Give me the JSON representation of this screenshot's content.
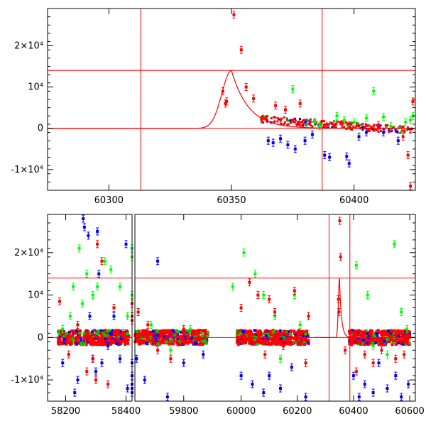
{
  "chart_data": [
    {
      "type": "scatter",
      "panel": "top",
      "xlim": [
        60275,
        60425
      ],
      "ylim": [
        -15000,
        29000
      ],
      "x_ticks": [
        {
          "value": 60300,
          "label": "60300"
        },
        {
          "value": 60350,
          "label": "60350"
        },
        {
          "value": 60400,
          "label": "60400"
        }
      ],
      "y_ticks": [
        {
          "value": -10000,
          "label": "-1×10⁴"
        },
        {
          "value": 0,
          "label": "0"
        },
        {
          "value": 10000,
          "label": "10⁴"
        },
        {
          "value": 20000,
          "label": "2×10⁴"
        }
      ],
      "vertical_lines": [
        60313,
        60387
      ],
      "horizontal_lines": [
        0,
        14000
      ],
      "model_curve": {
        "peak_x": 60350,
        "peak_y": 14000,
        "rise_width": 5.5,
        "decay_tau": 7
      },
      "series": [
        {
          "color": "#ff0000",
          "points": [
            [
              60346.5,
              9000
            ],
            [
              60347.5,
              6000
            ],
            [
              60348,
              6500
            ],
            [
              60351,
              27500
            ],
            [
              60354,
              19000
            ],
            [
              60356,
              10000
            ],
            [
              60359,
              7200
            ],
            [
              60368,
              5500
            ],
            [
              60372,
              4500
            ],
            [
              60378,
              6000
            ],
            [
              60395,
              1000
            ],
            [
              60410,
              800
            ],
            [
              60420,
              -2000
            ],
            [
              60422,
              -6500
            ],
            [
              60423,
              -14000
            ],
            [
              60424,
              6500
            ]
          ]
        },
        {
          "color": "#0000ff",
          "points": [
            [
              60365,
              -3000
            ],
            [
              60367,
              -3500
            ],
            [
              60370,
              -2500
            ],
            [
              60373,
              -4000
            ],
            [
              60376,
              -5000
            ],
            [
              60380,
              -3000
            ],
            [
              60383,
              -1500
            ],
            [
              60388,
              -6500
            ],
            [
              60390,
              -7000
            ],
            [
              60397,
              -6800
            ],
            [
              60398,
              -8500
            ],
            [
              60402,
              -2000
            ],
            [
              60405,
              -1000
            ],
            [
              60412,
              -1000
            ],
            [
              60418,
              -3000
            ]
          ]
        },
        {
          "color": "#00ff00",
          "points": [
            [
              60375,
              9500
            ],
            [
              60384,
              1500
            ],
            [
              60386,
              500
            ],
            [
              60393,
              3000
            ],
            [
              60396,
              2000
            ],
            [
              60400,
              1500
            ],
            [
              60405,
              2500
            ],
            [
              60408,
              9000
            ],
            [
              60412,
              2800
            ],
            [
              60415,
              500
            ],
            [
              60421,
              1500
            ],
            [
              60423,
              2000
            ],
            [
              60424,
              3000
            ]
          ]
        }
      ]
    },
    {
      "type": "scatter",
      "panel": "bottom",
      "xlim": [
        58140,
        60620
      ],
      "ylim": [
        -15000,
        29000
      ],
      "x_ticks": [
        {
          "value": 58200,
          "label": "58200"
        },
        {
          "value": 58400,
          "label": "58400"
        },
        {
          "value": 59800,
          "label": "59800"
        },
        {
          "value": 60000,
          "label": "60000"
        },
        {
          "value": 60200,
          "label": "60200"
        },
        {
          "value": 60400,
          "label": "60400"
        },
        {
          "value": 60600,
          "label": "60600"
        }
      ],
      "y_ticks": [
        {
          "value": -10000,
          "label": "-1×10⁴"
        },
        {
          "value": 0,
          "label": "0"
        },
        {
          "value": 10000,
          "label": "10⁴"
        },
        {
          "value": 20000,
          "label": "2×10⁴"
        }
      ],
      "vertical_lines": [
        60313,
        60387
      ],
      "horizontal_lines": [
        0,
        14000
      ],
      "model_curve": {
        "peak_x": 60350,
        "peak_y": 14000,
        "rise_width": 5.5,
        "decay_tau": 7
      },
      "series": [
        {
          "color": "#00ff00",
          "points": [
            [
              58190,
              2000
            ],
            [
              58215,
              5000
            ],
            [
              58225,
              12000
            ],
            [
              58245,
              21000
            ],
            [
              58255,
              8000
            ],
            [
              58270,
              15000
            ],
            [
              58290,
              10000
            ],
            [
              58305,
              12000
            ],
            [
              58330,
              18000
            ],
            [
              58350,
              16000
            ],
            [
              58380,
              12000
            ],
            [
              58405,
              5000
            ],
            [
              59470,
              21000
            ],
            [
              59500,
              19000
            ],
            [
              59520,
              8000
            ],
            [
              59550,
              5000
            ],
            [
              59620,
              10000
            ],
            [
              59700,
              3000
            ],
            [
              59760,
              -3000
            ],
            [
              59820,
              2000
            ],
            [
              59970,
              12000
            ],
            [
              60010,
              20000
            ],
            [
              60050,
              15000
            ],
            [
              60080,
              10000
            ],
            [
              60120,
              5000
            ],
            [
              60140,
              -5000
            ],
            [
              60190,
              10000
            ],
            [
              60210,
              3000
            ],
            [
              60410,
              17000
            ],
            [
              60450,
              10000
            ],
            [
              60470,
              -2000
            ],
            [
              60520,
              -4000
            ],
            [
              60545,
              22000
            ],
            [
              60570,
              6000
            ],
            [
              60590,
              2000
            ]
          ]
        },
        {
          "color": "#0000ff",
          "points": [
            [
              58190,
              -6000
            ],
            [
              58230,
              -13000
            ],
            [
              58240,
              -10000
            ],
            [
              58258,
              28000
            ],
            [
              58262,
              26000
            ],
            [
              58275,
              24000
            ],
            [
              58280,
              5000
            ],
            [
              58290,
              -5000
            ],
            [
              58300,
              -8000
            ],
            [
              58305,
              25000
            ],
            [
              58310,
              15000
            ],
            [
              58320,
              -6000
            ],
            [
              58340,
              -2000
            ],
            [
              58360,
              5000
            ],
            [
              58380,
              -5000
            ],
            [
              58400,
              22000
            ],
            [
              58405,
              -12000
            ],
            [
              59480,
              -11000
            ],
            [
              59500,
              -13000
            ],
            [
              59540,
              -9000
            ],
            [
              59580,
              -12000
            ],
            [
              59610,
              -6000
            ],
            [
              59655,
              -5000
            ],
            [
              59680,
              -10000
            ],
            [
              59720,
              18000
            ],
            [
              59750,
              -14000
            ],
            [
              59800,
              -6000
            ],
            [
              59860,
              -4000
            ],
            [
              60000,
              -9000
            ],
            [
              60040,
              -11000
            ],
            [
              60080,
              -13000
            ],
            [
              60100,
              -9000
            ],
            [
              60140,
              -12000
            ],
            [
              60180,
              -7000
            ],
            [
              60230,
              -14000
            ],
            [
              60400,
              -9000
            ],
            [
              60420,
              -14000
            ],
            [
              60440,
              -11000
            ],
            [
              60470,
              -13000
            ],
            [
              60490,
              -6000
            ],
            [
              60520,
              -12000
            ],
            [
              60550,
              -9000
            ],
            [
              60570,
              -14000
            ],
            [
              60595,
              -11000
            ]
          ]
        },
        {
          "color": "#ff0000",
          "points": [
            [
              58180,
              8500
            ],
            [
              58210,
              -4000
            ],
            [
              58240,
              3000
            ],
            [
              58270,
              -8000
            ],
            [
              58290,
              -5000
            ],
            [
              58300,
              -10000
            ],
            [
              58305,
              22000
            ],
            [
              58320,
              18000
            ],
            [
              58340,
              -11000
            ],
            [
              58360,
              7000
            ],
            [
              58390,
              1000
            ],
            [
              59530,
              4000
            ],
            [
              59560,
              8000
            ],
            [
              59590,
              5000
            ],
            [
              59620,
              4000
            ],
            [
              59660,
              6000
            ],
            [
              59690,
              3000
            ],
            [
              59720,
              -3000
            ],
            [
              59760,
              -5000
            ],
            [
              59800,
              2000
            ],
            [
              60000,
              7000
            ],
            [
              60030,
              13000
            ],
            [
              60060,
              10000
            ],
            [
              60085,
              -4000
            ],
            [
              60100,
              9000
            ],
            [
              60120,
              6000
            ],
            [
              60150,
              -2000
            ],
            [
              60190,
              11000
            ],
            [
              60230,
              -6000
            ],
            [
              60240,
              5000
            ],
            [
              60346,
              9000
            ],
            [
              60348,
              6000
            ],
            [
              60351,
              27500
            ],
            [
              60354,
              19000
            ],
            [
              60370,
              -3000
            ],
            [
              60410,
              -8000
            ],
            [
              60440,
              -4000
            ],
            [
              60470,
              -6000
            ],
            [
              60500,
              -3000
            ],
            [
              60550,
              -5000
            ],
            [
              60580,
              -4000
            ]
          ]
        }
      ]
    }
  ]
}
